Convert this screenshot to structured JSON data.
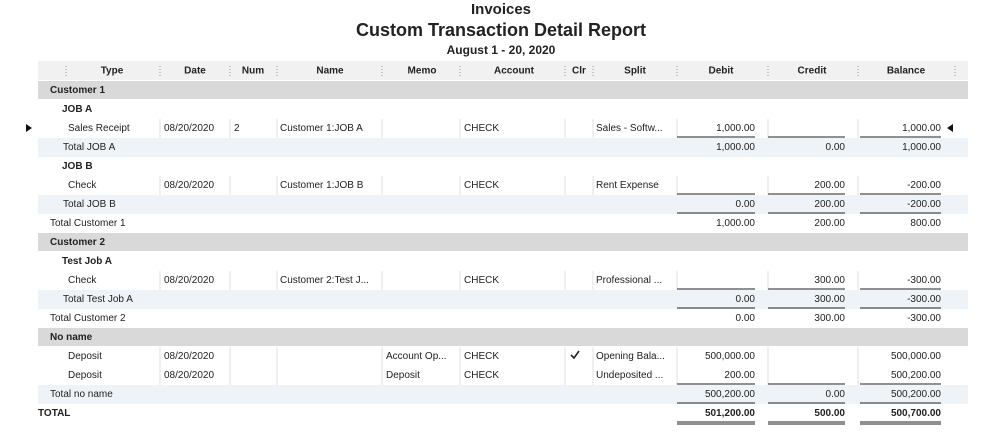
{
  "header": {
    "company": "Invoices",
    "title": "Custom Transaction Detail Report",
    "subtitle": "August 1 - 20, 2020"
  },
  "columns": {
    "type": "Type",
    "date": "Date",
    "num": "Num",
    "name": "Name",
    "memo": "Memo",
    "account": "Account",
    "clr": "Clr",
    "split": "Split",
    "debit": "Debit",
    "credit": "Credit",
    "balance": "Balance"
  },
  "rows": [
    {
      "label": "Customer 1"
    },
    {
      "label": "JOB A"
    },
    {
      "type": "Sales Receipt",
      "date": "08/20/2020",
      "num": "2",
      "name": "Customer 1:JOB A",
      "account": "CHECK",
      "split": "Sales - Softw...",
      "debit": "1,000.00",
      "balance": "1,000.00"
    },
    {
      "label": "Total JOB A",
      "debit": "1,000.00",
      "credit": "0.00",
      "balance": "1,000.00"
    },
    {
      "label": "JOB B"
    },
    {
      "type": "Check",
      "date": "08/20/2020",
      "name": "Customer 1:JOB B",
      "account": "CHECK",
      "split": "Rent Expense",
      "credit": "200.00",
      "balance": "-200.00"
    },
    {
      "label": "Total JOB B",
      "debit": "0.00",
      "credit": "200.00",
      "balance": "-200.00"
    },
    {
      "label": "Total Customer 1",
      "debit": "1,000.00",
      "credit": "200.00",
      "balance": "800.00"
    },
    {
      "label": "Customer 2"
    },
    {
      "label": "Test Job A"
    },
    {
      "type": "Check",
      "date": "08/20/2020",
      "name": "Customer 2:Test J...",
      "account": "CHECK",
      "split": "Professional ...",
      "credit": "300.00",
      "balance": "-300.00"
    },
    {
      "label": "Total Test Job A",
      "debit": "0.00",
      "credit": "300.00",
      "balance": "-300.00"
    },
    {
      "label": "Total Customer 2",
      "debit": "0.00",
      "credit": "300.00",
      "balance": "-300.00"
    },
    {
      "label": "No name"
    },
    {
      "type": "Deposit",
      "date": "08/20/2020",
      "memo": "Account Op...",
      "account": "CHECK",
      "split": "Opening Bala...",
      "debit": "500,000.00",
      "balance": "500,000.00"
    },
    {
      "type": "Deposit",
      "date": "08/20/2020",
      "memo": "Deposit",
      "account": "CHECK",
      "split": "Undeposited ...",
      "debit": "200.00",
      "balance": "500,200.00"
    },
    {
      "label": "Total no name",
      "debit": "500,200.00",
      "credit": "0.00",
      "balance": "500,200.00"
    },
    {
      "label": "TOTAL",
      "debit": "501,200.00",
      "credit": "500.00",
      "balance": "500,700.00"
    }
  ]
}
